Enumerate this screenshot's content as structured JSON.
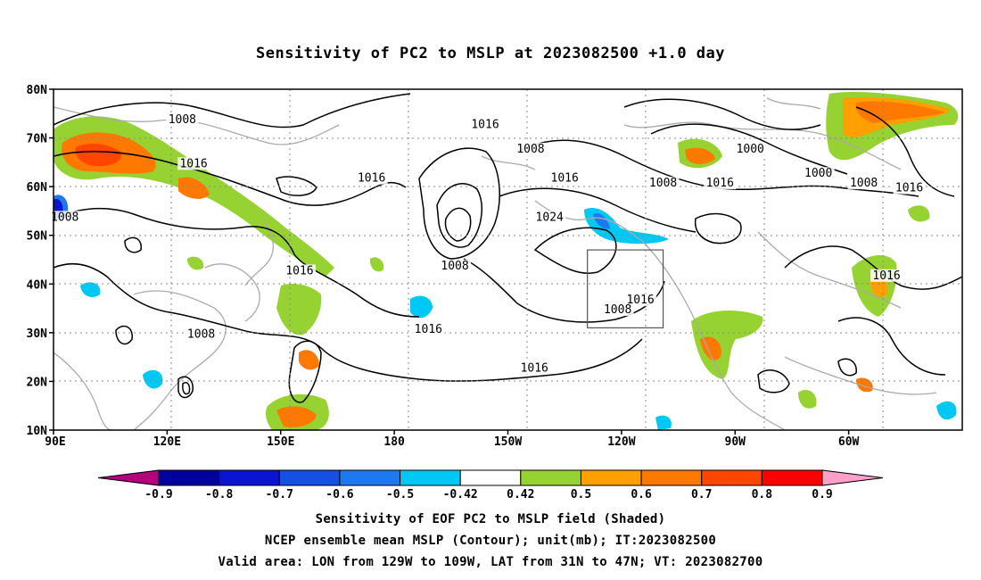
{
  "title": "Sensitivity of PC2 to MSLP at 2023082500 +1.0 day",
  "lat_labels": [
    "80N",
    "70N",
    "60N",
    "50N",
    "40N",
    "30N",
    "20N",
    "10N"
  ],
  "lon_labels": [
    "90E",
    "120E",
    "150E",
    "180",
    "150W",
    "120W",
    "90W",
    "60W"
  ],
  "contour_labels": [
    {
      "text": "1008",
      "lon": 124,
      "lat": 73
    },
    {
      "text": "1016",
      "lon": 204,
      "lat": 72
    },
    {
      "text": "1008",
      "lon": 216,
      "lat": 67
    },
    {
      "text": "1016",
      "lon": 127,
      "lat": 64
    },
    {
      "text": "1016",
      "lon": 174,
      "lat": 61
    },
    {
      "text": "1016",
      "lon": 225,
      "lat": 61
    },
    {
      "text": "1008",
      "lon": 251,
      "lat": 60
    },
    {
      "text": "1016",
      "lon": 266,
      "lat": 60
    },
    {
      "text": "1000",
      "lon": 274,
      "lat": 67
    },
    {
      "text": "1000",
      "lon": 292,
      "lat": 62
    },
    {
      "text": "1008",
      "lon": 304,
      "lat": 60
    },
    {
      "text": "1016",
      "lon": 316,
      "lat": 59
    },
    {
      "text": "1024",
      "lon": 221,
      "lat": 53
    },
    {
      "text": "1008",
      "lon": 93,
      "lat": 53
    },
    {
      "text": "1008",
      "lon": 196,
      "lat": 43
    },
    {
      "text": "1016",
      "lon": 155,
      "lat": 42
    },
    {
      "text": "1016",
      "lon": 245,
      "lat": 36
    },
    {
      "text": "1008",
      "lon": 239,
      "lat": 34
    },
    {
      "text": "1008",
      "lon": 129,
      "lat": 29
    },
    {
      "text": "1016",
      "lon": 189,
      "lat": 30
    },
    {
      "text": "1016",
      "lon": 217,
      "lat": 22
    },
    {
      "text": "1016",
      "lon": 310,
      "lat": 41
    }
  ],
  "colorbar": {
    "labels": [
      "-0.9",
      "-0.8",
      "-0.7",
      "-0.6",
      "-0.5",
      "-0.42",
      "0.42",
      "0.5",
      "0.6",
      "0.7",
      "0.8",
      "0.9"
    ],
    "colors": [
      "#b4007c",
      "#0000a0",
      "#0a14d2",
      "#1450e6",
      "#1e78f0",
      "#00c8f5",
      "#ffffff",
      "#96d232",
      "#ffa000",
      "#ff7800",
      "#ff4600",
      "#ff0000",
      "#ffa0c8"
    ]
  },
  "valid_box": {
    "lon_from": 231,
    "lon_to": 251,
    "lat_from": 31,
    "lat_to": 47
  },
  "captions": {
    "line1": "Sensitivity of EOF PC2 to MSLP field (Shaded)",
    "line2": "NCEP ensemble mean MSLP (Contour); unit(mb); IT:2023082500",
    "line3": "Valid area: LON from 129W to 109W, LAT from 31N to 47N; VT: 2023082700"
  }
}
